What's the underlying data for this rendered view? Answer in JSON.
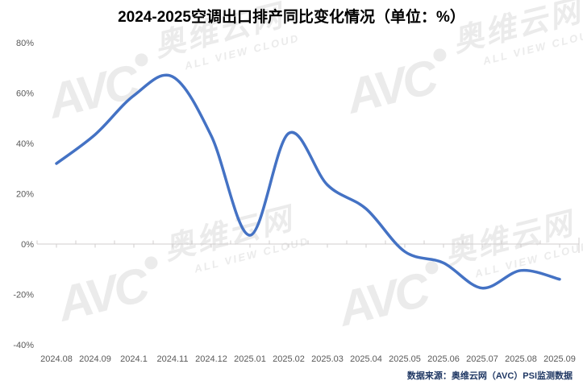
{
  "chart_data": {
    "type": "line",
    "title": "2024-2025空调出口排产同比变化情况（单位：%）",
    "categories": [
      "2024.08",
      "2024.09",
      "2024.1",
      "2024.11",
      "2024.12",
      "2025.01",
      "2025.02",
      "2025.03",
      "2025.04",
      "2025.05",
      "2025.06",
      "2025.07",
      "2025.08",
      "2025.09"
    ],
    "values": [
      32,
      43.5,
      59,
      66.5,
      43,
      3.5,
      44,
      23.5,
      14,
      -3,
      -7.5,
      -17.5,
      -10.5,
      -14
    ],
    "xlabel": "",
    "ylabel": "",
    "ylim": [
      -40,
      80
    ],
    "y_tick_values": [
      80,
      60,
      40,
      20,
      0,
      -20,
      -40
    ],
    "y_tick_labels": [
      "80%",
      "60%",
      "40%",
      "20%",
      "0%",
      "-20%",
      "-40%"
    ],
    "grid": false,
    "legend_position": "none",
    "smooth": true,
    "line_color": "#4472c4",
    "axis_color": "#d0cece",
    "tick_label_color": "#595959"
  },
  "footer": {
    "source": "数据来源：奥维云网（AVC）PSI监测数据",
    "color": "#203864"
  },
  "watermark": {
    "logo": "AVC",
    "cn": "奥维云网",
    "en": "ALL VIEW CLOUD",
    "color": "#ebebeb"
  }
}
